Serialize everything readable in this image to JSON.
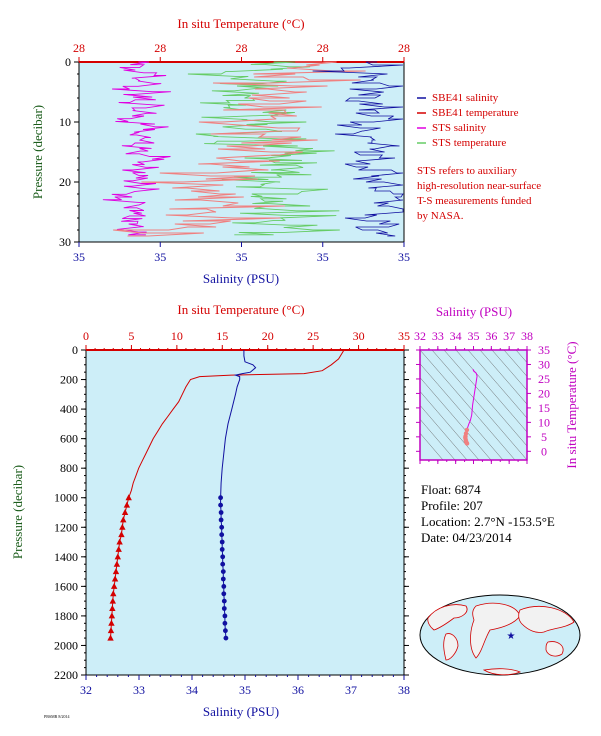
{
  "colors": {
    "salinity": "#1010a0",
    "temperature": "#d40000",
    "sts_salinity": "#e000e0",
    "sts_temperature": "#66cc66",
    "pressure_axis": "#1a5c1a",
    "ts_axis": "#c000c0",
    "plot_bg": "#cdeef8"
  },
  "chart_data": [
    {
      "id": "near-surface",
      "type": "line",
      "top_axis_label": "In situ Temperature (°C)",
      "top_tick_labels": [
        "28",
        "28",
        "28",
        "28",
        "28"
      ],
      "bottom_axis_label": "Salinity (PSU)",
      "bottom_tick_labels": [
        "35",
        "35",
        "35",
        "35",
        "35"
      ],
      "ylabel": "Pressure (decibar)",
      "ylim": [
        30,
        0
      ],
      "yticks": [
        0,
        10,
        20,
        30
      ],
      "legend": [
        {
          "label": "SBE41 salinity",
          "color": "#1010a0"
        },
        {
          "label": "SBE41 temperature",
          "color": "#d40000"
        },
        {
          "label": "STS salinity",
          "color": "#e000e0"
        },
        {
          "label": "STS temperature",
          "color": "#66cc66"
        }
      ],
      "note": [
        "STS refers to auxiliary",
        "high-resolution near-surface",
        "T-S measurements funded",
        "by NASA."
      ]
    },
    {
      "id": "full-profile",
      "type": "line",
      "top_axis_label": "In situ Temperature (°C)",
      "xlim_temperature": [
        0,
        35
      ],
      "xticks_temperature": [
        0,
        5,
        10,
        15,
        20,
        25,
        30,
        35
      ],
      "bottom_axis_label": "Salinity (PSU)",
      "xlim_salinity": [
        32,
        38
      ],
      "xticks_salinity": [
        32,
        33,
        34,
        35,
        36,
        37,
        38
      ],
      "ylabel": "Pressure (decibar)",
      "ylim": [
        2200,
        0
      ],
      "yticks": [
        0,
        200,
        400,
        600,
        800,
        1000,
        1200,
        1400,
        1600,
        1800,
        2000,
        2200
      ],
      "series": [
        {
          "key": "temperature",
          "pressure": [
            0,
            20,
            60,
            100,
            140,
            160,
            170,
            180,
            200,
            250,
            300,
            350,
            400,
            450,
            500,
            550,
            600,
            650,
            700,
            750,
            800,
            850,
            900,
            950,
            1000,
            1050,
            1100,
            1150,
            1200,
            1250,
            1300,
            1350,
            1400,
            1450,
            1500,
            1550,
            1600,
            1650,
            1700,
            1750,
            1800,
            1850,
            1900,
            1950
          ],
          "temperature": [
            28.4,
            28.2,
            27.8,
            27.0,
            26.0,
            24.0,
            16.0,
            12.5,
            11.5,
            11.0,
            10.6,
            10.2,
            9.6,
            9.0,
            8.4,
            7.9,
            7.4,
            7.0,
            6.6,
            6.2,
            5.8,
            5.5,
            5.2,
            5.0,
            4.7,
            4.5,
            4.3,
            4.1,
            4.0,
            3.9,
            3.7,
            3.6,
            3.5,
            3.4,
            3.3,
            3.2,
            3.1,
            3.0,
            2.95,
            2.9,
            2.85,
            2.8,
            2.75,
            2.7
          ],
          "marker_from_pressure": 1000
        },
        {
          "key": "salinity",
          "pressure": [
            0,
            40,
            80,
            100,
            120,
            150,
            160,
            170,
            180,
            200,
            250,
            300,
            400,
            500,
            600,
            700,
            800,
            900,
            1000,
            1050,
            1100,
            1150,
            1200,
            1250,
            1300,
            1350,
            1400,
            1450,
            1500,
            1550,
            1600,
            1650,
            1700,
            1750,
            1800,
            1850,
            1900,
            1950
          ],
          "salinity": [
            34.98,
            34.98,
            35.0,
            35.15,
            35.2,
            35.1,
            34.95,
            34.82,
            34.9,
            34.9,
            34.85,
            34.82,
            34.75,
            34.68,
            34.63,
            34.6,
            34.57,
            34.55,
            34.54,
            34.54,
            34.55,
            34.55,
            34.56,
            34.56,
            34.57,
            34.57,
            34.58,
            34.58,
            34.59,
            34.59,
            34.6,
            34.6,
            34.61,
            34.61,
            34.62,
            34.62,
            34.63,
            34.64
          ],
          "marker_from_pressure": 1000
        }
      ]
    },
    {
      "id": "ts-diagram",
      "type": "scatter",
      "top_axis_label": "Salinity (PSU)",
      "xlim": [
        32,
        38
      ],
      "xticks": [
        32,
        33,
        34,
        35,
        36,
        37,
        38
      ],
      "right_axis_label": "In situ Temperature (°C)",
      "ylim": [
        -3,
        35
      ],
      "yticks": [
        0,
        5,
        10,
        15,
        20,
        25,
        30,
        35
      ],
      "points": [
        {
          "s": 34.98,
          "t": 28.4
        },
        {
          "s": 35.0,
          "t": 27.8
        },
        {
          "s": 35.15,
          "t": 27.0
        },
        {
          "s": 35.2,
          "t": 26.0
        },
        {
          "s": 34.95,
          "t": 16.0
        },
        {
          "s": 34.9,
          "t": 12.5
        },
        {
          "s": 34.82,
          "t": 10.6
        },
        {
          "s": 34.75,
          "t": 9.6
        },
        {
          "s": 34.68,
          "t": 8.4
        },
        {
          "s": 34.63,
          "t": 7.4
        },
        {
          "s": 34.58,
          "t": 6.2
        },
        {
          "s": 34.55,
          "t": 5.2
        },
        {
          "s": 34.54,
          "t": 4.7
        },
        {
          "s": 34.56,
          "t": 4.0
        },
        {
          "s": 34.58,
          "t": 3.5
        },
        {
          "s": 34.6,
          "t": 3.1
        },
        {
          "s": 34.62,
          "t": 2.85
        },
        {
          "s": 34.64,
          "t": 2.7
        }
      ]
    }
  ],
  "float_info": {
    "float": "Float: 6874",
    "profile": "Profile: 207",
    "location": "Location: 2.7°N -153.5°E",
    "date": "Date: 04/23/2014"
  },
  "map": {
    "icon": "world-map-icon",
    "marker": "float-location-star-icon"
  },
  "footer_code": "PBSMR 8/2014"
}
